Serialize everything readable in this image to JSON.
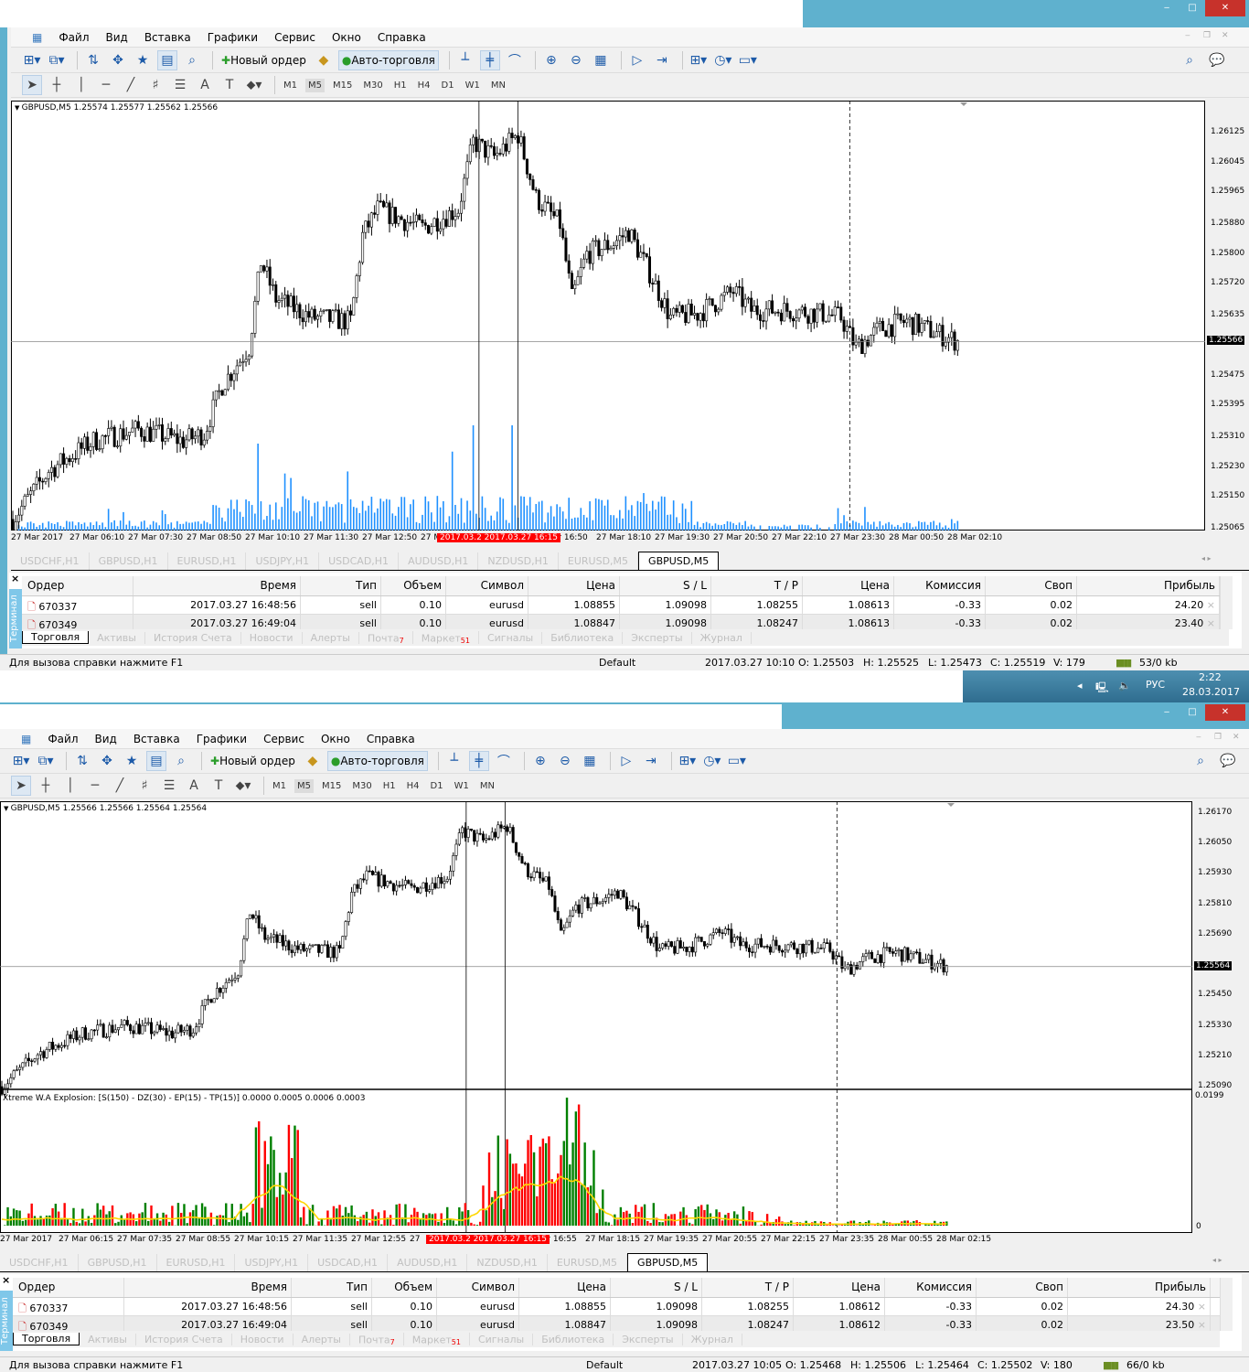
{
  "app": {
    "menu": [
      "Файл",
      "Вид",
      "Вставка",
      "Графики",
      "Сервис",
      "Окно",
      "Справка"
    ],
    "toolbar_main": {
      "new_order": "Новый ордер",
      "auto_trading": "Авто-торговля"
    },
    "timeframes": [
      "M1",
      "M5",
      "M15",
      "M30",
      "H1",
      "H4",
      "D1",
      "W1",
      "MN"
    ],
    "active_timeframe": "M5",
    "chart_tabs": [
      "USDCHF,H1",
      "GBPUSD,H1",
      "EURUSD,H1",
      "USDJPY,H1",
      "USDCAD,H1",
      "AUDUSD,H1",
      "NZDUSD,H1",
      "EURUSD,M5",
      "GBPUSD,M5"
    ],
    "active_chart_tab": "GBPUSD,M5",
    "terminal_label": "Терминал",
    "columns": [
      "Ордер",
      "Время",
      "Тип",
      "Объем",
      "Символ",
      "Цена",
      "S / L",
      "T / P",
      "Цена",
      "Комиссия",
      "Своп",
      "Прибыль"
    ],
    "bottom_tabs": [
      {
        "label": "Торговля",
        "badge": ""
      },
      {
        "label": "Активы",
        "badge": ""
      },
      {
        "label": "История Счета",
        "badge": ""
      },
      {
        "label": "Новости",
        "badge": ""
      },
      {
        "label": "Алерты",
        "badge": ""
      },
      {
        "label": "Почта",
        "badge": "7"
      },
      {
        "label": "Маркет",
        "badge": "51"
      },
      {
        "label": "Сигналы",
        "badge": ""
      },
      {
        "label": "Библиотека",
        "badge": ""
      },
      {
        "label": "Эксперты",
        "badge": ""
      },
      {
        "label": "Журнал",
        "badge": ""
      }
    ],
    "help_text": "Для вызова справки нажмите F1",
    "colors": {
      "title_blue": "#5fb1ce",
      "close_red": "#c7322b",
      "volume_blue": "#1e90ff",
      "bull_green": "#008000",
      "bear_red": "#ff0000",
      "signal_yellow": "#ffd700",
      "highlight_red": "#ff0000"
    }
  },
  "windows": [
    {
      "chart": {
        "info": "GBPUSD,M5  1.25574 1.25577 1.25562 1.25566",
        "price_ticks": [
          "1.26125",
          "1.26045",
          "1.25965",
          "1.25880",
          "1.25800",
          "1.25720",
          "1.25635",
          "1.25475",
          "1.25395",
          "1.25310",
          "1.25230",
          "1.25150",
          "1.25065"
        ],
        "price_range": [
          1.25065,
          1.26125
        ],
        "current_price": "1.25566",
        "time_labels": [
          "27 Mar 2017",
          "27 Mar 06:10",
          "27 Mar 07:30",
          "27 Mar 08:50",
          "27 Mar 10:10",
          "27 Mar 11:30",
          "27 Mar 12:50",
          "27 M",
          "",
          "Mar 16:50",
          "27 Mar 18:10",
          "27 Mar 19:30",
          "27 Mar 20:50",
          "27 Mar 22:10",
          "27 Mar 23:30",
          "28 Mar 00:50",
          "28 Mar 02:10"
        ],
        "highlight_time": "2017.03.2 2017.03.27 16:15",
        "indicator": null
      },
      "rows": [
        [
          "670337",
          "2017.03.27 16:48:56",
          "sell",
          "0.10",
          "eurusd",
          "1.08855",
          "1.09098",
          "1.08255",
          "1.08613",
          "-0.33",
          "0.02",
          "24.20"
        ],
        [
          "670349",
          "2017.03.27 16:49:04",
          "sell",
          "0.10",
          "eurusd",
          "1.08847",
          "1.09098",
          "1.08247",
          "1.08613",
          "-0.33",
          "0.02",
          "23.40"
        ]
      ],
      "status": {
        "profile": "Default",
        "time": "2017.03.27 10:10",
        "open": "O: 1.25503",
        "high": "H: 1.25525",
        "low": "L: 1.25473",
        "close": "C: 1.25519",
        "volume": "V: 179",
        "traffic": "53/0 kb"
      }
    },
    {
      "chart": {
        "info": "GBPUSD,M5  1.25566 1.25566 1.25564 1.25564",
        "price_ticks": [
          "1.26170",
          "1.26050",
          "1.25930",
          "1.25810",
          "1.25690",
          "1.25450",
          "1.25330",
          "1.25210",
          "1.25090"
        ],
        "price_range": [
          1.2509,
          1.2617
        ],
        "current_price": "1.25564",
        "time_labels": [
          "27 Mar 2017",
          "27 Mar 06:15",
          "27 Mar 07:35",
          "27 Mar 08:55",
          "27 Mar 10:15",
          "27 Mar 11:35",
          "27 Mar 12:55",
          "27",
          "",
          "Mar 16:55",
          "27 Mar 18:15",
          "27 Mar 19:35",
          "27 Mar 20:55",
          "27 Mar 22:15",
          "27 Mar 23:35",
          "28 Mar 00:55",
          "28 Mar 02:15"
        ],
        "highlight_time": "2017.03.2 2017.03.27 16:15",
        "indicator": {
          "label": "Xtreme W.A Explosion: [S(150) - DZ(30) - EP(15) - TP(15)] 0.0000 0.0005 0.0006 0.0003",
          "max": "0.0199",
          "min": "0"
        }
      },
      "rows": [
        [
          "670337",
          "2017.03.27 16:48:56",
          "sell",
          "0.10",
          "eurusd",
          "1.08855",
          "1.09098",
          "1.08255",
          "1.08612",
          "-0.33",
          "0.02",
          "24.30"
        ],
        [
          "670349",
          "2017.03.27 16:49:04",
          "sell",
          "0.10",
          "eurusd",
          "1.08847",
          "1.09098",
          "1.08247",
          "1.08612",
          "-0.33",
          "0.02",
          "23.50"
        ]
      ],
      "status": {
        "profile": "Default",
        "time": "2017.03.27 10:05",
        "open": "O: 1.25468",
        "high": "H: 1.25506",
        "low": "L: 1.25464",
        "close": "C: 1.25502",
        "volume": "V: 180",
        "traffic": "66/0 kb"
      }
    }
  ],
  "price_path": [
    [
      "27 00:00",
      1.2509
    ],
    [
      "27 01:00",
      1.2522
    ],
    [
      "27 02:15",
      1.253
    ],
    [
      "27 03:30",
      1.2533
    ],
    [
      "27 04:45",
      1.253
    ],
    [
      "27 05:20",
      1.2532
    ],
    [
      "27 05:50",
      1.2545
    ],
    [
      "27 06:35",
      1.2555
    ],
    [
      "27 06:55",
      1.2578
    ],
    [
      "27 07:20",
      1.2568
    ],
    [
      "27 08:20",
      1.2563
    ],
    [
      "27 09:25",
      1.2562
    ],
    [
      "27 09:45",
      1.2585
    ],
    [
      "27 10:10",
      1.2592
    ],
    [
      "27 11:25",
      1.2587
    ],
    [
      "27 12:25",
      1.2592
    ],
    [
      "27 12:50",
      1.261
    ],
    [
      "27 13:25",
      1.2606
    ],
    [
      "27 14:05",
      1.2612
    ],
    [
      "27 14:35",
      1.2595
    ],
    [
      "27 15:15",
      1.2588
    ],
    [
      "27 15:35",
      1.2568
    ],
    [
      "27 16:00",
      1.258
    ],
    [
      "27 16:45",
      1.2583
    ],
    [
      "27 17:10",
      1.2586
    ],
    [
      "27 17:45",
      1.2575
    ],
    [
      "27 18:20",
      1.2563
    ],
    [
      "27 19:05",
      1.2564
    ],
    [
      "27 20:05",
      1.257
    ],
    [
      "27 20:35",
      1.2565
    ],
    [
      "27 21:35",
      1.2565
    ],
    [
      "27 22:35",
      1.2564
    ],
    [
      "27 23:05",
      1.2563
    ],
    [
      "27 23:30",
      1.2555
    ],
    [
      "28 00:10",
      1.256
    ],
    [
      "28 00:55",
      1.2562
    ],
    [
      "28 02:20",
      1.25566
    ]
  ],
  "taskbar": {
    "lang": "РУС",
    "time": "2:22",
    "date": "28.03.2017"
  }
}
